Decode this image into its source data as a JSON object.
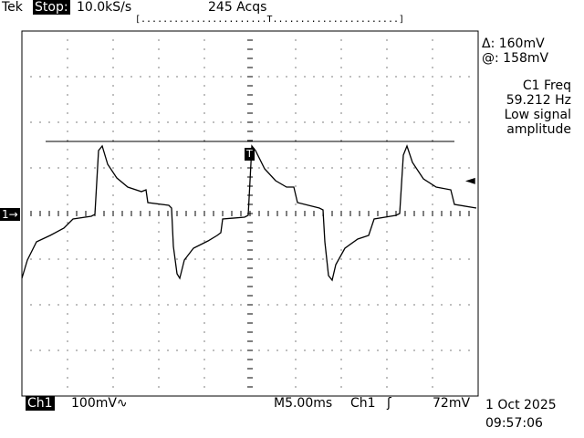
{
  "header": {
    "brand": "Tek",
    "run_state": "Stop:",
    "sample_rate": "10.0kS/s",
    "acquisitions": "245 Acqs",
    "trigger_position": "[.......................T.......................]"
  },
  "cursor_readout": {
    "delta": "Δ: 160mV",
    "at": "@: 158mV"
  },
  "measurement": {
    "label": "C1 Freq",
    "value": "59.212 Hz",
    "note_line1": "Low signal",
    "note_line2": "amplitude"
  },
  "markers": {
    "channel": "1→",
    "trigger_point": "T",
    "trigger_level_arrow": "◄"
  },
  "footer": {
    "channel": "Ch1",
    "volts_per_div": "100mV∿",
    "timebase": "M5.00ms",
    "trigger_source": "Ch1",
    "trigger_slope": "ʃ",
    "trigger_level": "72mV",
    "date": "1 Oct 2025",
    "time": "09:57:06"
  },
  "colors": {
    "background": "#ffffff",
    "foreground": "#000000"
  }
}
